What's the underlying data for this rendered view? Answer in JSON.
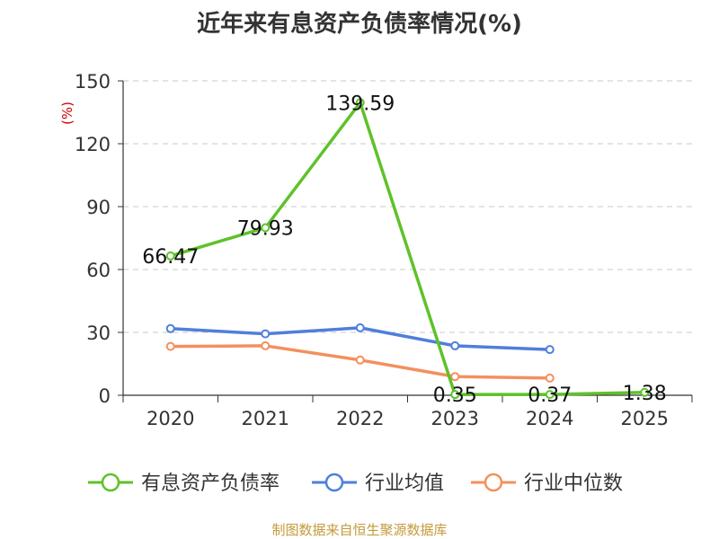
{
  "chart_data": {
    "type": "line",
    "title": "近年来有息资产负债率情况(%)",
    "ylabel": "(%)",
    "categories": [
      "2020",
      "2021",
      "2022",
      "2023",
      "2024",
      "2025"
    ],
    "ylim": [
      0,
      150
    ],
    "yticks": [
      "0",
      "30",
      "60",
      "90",
      "120",
      "150"
    ],
    "grid": true,
    "legend_position": "bottom",
    "series": [
      {
        "name": "有息资产负债率",
        "color": "#5ec229",
        "values": [
          66.47,
          79.93,
          139.59,
          0.35,
          0.37,
          1.38
        ],
        "labels": [
          "66.47",
          "79.93",
          "139.59",
          "0.35",
          "0.37",
          "1.38"
        ]
      },
      {
        "name": "行业均值",
        "color": "#4e7fdb",
        "values": [
          31.8,
          29.3,
          32.2,
          23.6,
          21.8,
          null
        ]
      },
      {
        "name": "行业中位数",
        "color": "#f3905d",
        "values": [
          23.3,
          23.6,
          16.8,
          8.9,
          8.2,
          null
        ]
      }
    ]
  },
  "source": "制图数据来自恒生聚源数据库"
}
